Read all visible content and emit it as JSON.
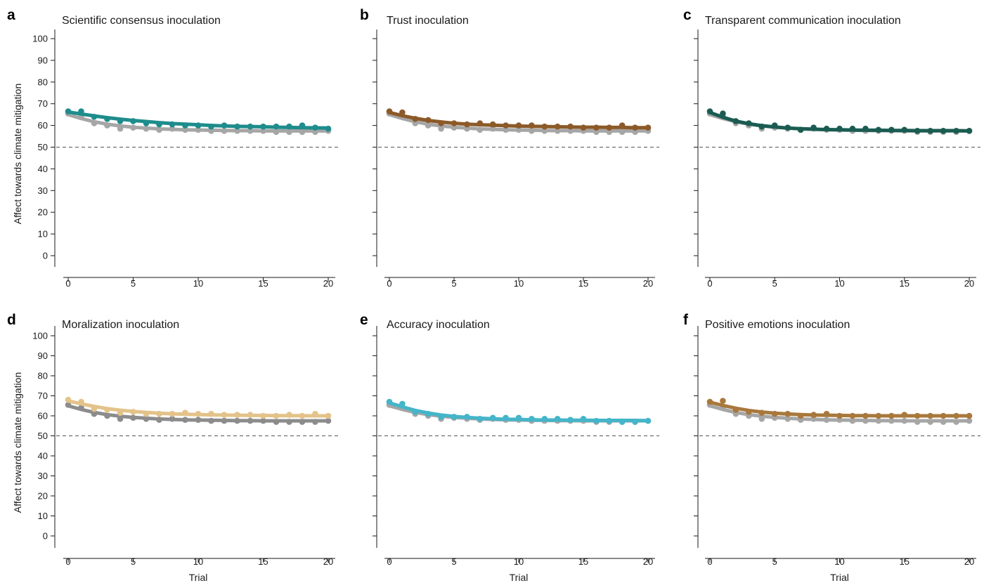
{
  "chart_data": [
    {
      "type": "line",
      "panel_letter": "a",
      "title": "Scientific consensus inoculation",
      "xlabel": "",
      "ylabel": "Affect towards climate mitigation",
      "xlim": [
        0,
        20
      ],
      "ylim": [
        0,
        100
      ],
      "xticks": [
        0,
        5,
        10,
        15,
        20
      ],
      "yticks": [
        0,
        10,
        20,
        30,
        40,
        50,
        60,
        70,
        80,
        90,
        100
      ],
      "reference_line": 50,
      "series": [
        {
          "role": "control",
          "color": "#a6a6a6",
          "points_x": [
            0,
            1,
            2,
            3,
            4,
            5,
            6,
            7,
            8,
            9,
            10,
            11,
            12,
            13,
            14,
            15,
            16,
            17,
            18,
            19,
            20
          ],
          "points_y": [
            65.5,
            64,
            61,
            60,
            58.5,
            59,
            58.5,
            58,
            58.5,
            58,
            58,
            57.5,
            57.5,
            57.5,
            57.5,
            57.5,
            57,
            57,
            57,
            57,
            57.5
          ],
          "fit_y": [
            65,
            63.2,
            61.7,
            60.6,
            59.8,
            59.2,
            58.8,
            58.4,
            58.2,
            58,
            57.9,
            57.8,
            57.7,
            57.6,
            57.6,
            57.5,
            57.5,
            57.5,
            57.5,
            57.5,
            57.5
          ]
        },
        {
          "role": "treatment",
          "color": "#1e8c8c",
          "points_x": [
            0,
            1,
            2,
            3,
            4,
            5,
            6,
            7,
            8,
            9,
            10,
            11,
            12,
            13,
            14,
            15,
            16,
            17,
            18,
            19,
            20
          ],
          "points_y": [
            66.5,
            66.5,
            64,
            63,
            62,
            62,
            61,
            60.5,
            60.5,
            60,
            60,
            59.5,
            60,
            59.5,
            59.5,
            59.5,
            59.5,
            59.5,
            60,
            59,
            58.5
          ],
          "fit_y": [
            66.2,
            65.3,
            64.4,
            63.6,
            62.9,
            62.3,
            61.8,
            61.3,
            60.9,
            60.6,
            60.3,
            60,
            59.8,
            59.6,
            59.5,
            59.4,
            59.2,
            59.1,
            59,
            58.9,
            58.8
          ]
        }
      ]
    },
    {
      "type": "line",
      "panel_letter": "b",
      "title": "Trust inoculation",
      "xlabel": "",
      "ylabel": "",
      "xlim": [
        0,
        20
      ],
      "ylim": [
        0,
        100
      ],
      "xticks": [
        0,
        5,
        10,
        15,
        20
      ],
      "yticks": [
        0,
        10,
        20,
        30,
        40,
        50,
        60,
        70,
        80,
        90,
        100
      ],
      "reference_line": 50,
      "series": [
        {
          "role": "control",
          "color": "#a6a6a6",
          "points_x": [
            0,
            1,
            2,
            3,
            4,
            5,
            6,
            7,
            8,
            9,
            10,
            11,
            12,
            13,
            14,
            15,
            16,
            17,
            18,
            19,
            20
          ],
          "points_y": [
            65.5,
            64,
            61,
            60,
            58.5,
            59,
            58.5,
            58,
            58.5,
            58,
            58,
            57.5,
            57.5,
            57.5,
            57.5,
            57.5,
            57,
            57,
            57,
            57,
            57.5
          ],
          "fit_y": [
            65,
            63.2,
            61.7,
            60.6,
            59.8,
            59.2,
            58.8,
            58.4,
            58.2,
            58,
            57.9,
            57.8,
            57.7,
            57.6,
            57.6,
            57.5,
            57.5,
            57.5,
            57.5,
            57.5,
            57.5
          ]
        },
        {
          "role": "treatment",
          "color": "#8c5a28",
          "points_x": [
            0,
            1,
            2,
            3,
            4,
            5,
            6,
            7,
            8,
            9,
            10,
            11,
            12,
            13,
            14,
            15,
            16,
            17,
            18,
            19,
            20
          ],
          "points_y": [
            66.5,
            66,
            63,
            62.5,
            61,
            61,
            60.5,
            61,
            60.5,
            60,
            60,
            60,
            59.5,
            59.5,
            59.5,
            59,
            59,
            59,
            60,
            59,
            59
          ],
          "fit_y": [
            66,
            64.5,
            63.3,
            62.3,
            61.6,
            61,
            60.6,
            60.3,
            60.1,
            59.9,
            59.7,
            59.6,
            59.5,
            59.4,
            59.3,
            59.2,
            59.2,
            59.1,
            59.1,
            59,
            59
          ]
        }
      ]
    },
    {
      "type": "line",
      "panel_letter": "c",
      "title": "Transparent communication inoculation",
      "xlabel": "",
      "ylabel": "",
      "xlim": [
        0,
        20
      ],
      "ylim": [
        0,
        100
      ],
      "xticks": [
        0,
        5,
        10,
        15,
        20
      ],
      "yticks": [
        0,
        10,
        20,
        30,
        40,
        50,
        60,
        70,
        80,
        90,
        100
      ],
      "reference_line": 50,
      "series": [
        {
          "role": "control",
          "color": "#a6a6a6",
          "points_x": [
            0,
            1,
            2,
            3,
            4,
            5,
            6,
            7,
            8,
            9,
            10,
            11,
            12,
            13,
            14,
            15,
            16,
            17,
            18,
            19,
            20
          ],
          "points_y": [
            65.5,
            64,
            61,
            60,
            58.5,
            59,
            58.5,
            58,
            58.5,
            58,
            58,
            57.5,
            57.5,
            57.5,
            57.5,
            57.5,
            57,
            57,
            57,
            57,
            57.5
          ],
          "fit_y": [
            65,
            63.2,
            61.7,
            60.6,
            59.8,
            59.2,
            58.8,
            58.4,
            58.2,
            58,
            57.9,
            57.8,
            57.7,
            57.6,
            57.6,
            57.5,
            57.5,
            57.5,
            57.5,
            57.5,
            57.5
          ]
        },
        {
          "role": "treatment",
          "color": "#1a5c52",
          "points_x": [
            0,
            1,
            2,
            3,
            4,
            5,
            6,
            7,
            8,
            9,
            10,
            11,
            12,
            13,
            14,
            15,
            16,
            17,
            18,
            19,
            20
          ],
          "points_y": [
            66.5,
            65.5,
            62,
            61,
            59.5,
            60,
            59,
            58,
            59,
            58.5,
            58.5,
            58.5,
            58.5,
            58,
            58,
            58,
            57.5,
            57.5,
            57.5,
            57.5,
            57.5
          ],
          "fit_y": [
            66,
            63.8,
            62,
            60.8,
            59.9,
            59.3,
            58.8,
            58.5,
            58.3,
            58.1,
            58,
            57.9,
            57.8,
            57.8,
            57.7,
            57.7,
            57.6,
            57.6,
            57.6,
            57.6,
            57.5
          ]
        }
      ]
    },
    {
      "type": "line",
      "panel_letter": "d",
      "title": "Moralization inoculation",
      "xlabel": "Trial",
      "ylabel": "Affect towards climate mitigation",
      "xlim": [
        0,
        20
      ],
      "ylim": [
        0,
        100
      ],
      "xticks": [
        0,
        5,
        10,
        15,
        20
      ],
      "yticks": [
        0,
        10,
        20,
        30,
        40,
        50,
        60,
        70,
        80,
        90,
        100
      ],
      "reference_line": 50,
      "series": [
        {
          "role": "control",
          "color": "#8c8c8c",
          "points_x": [
            0,
            1,
            2,
            3,
            4,
            5,
            6,
            7,
            8,
            9,
            10,
            11,
            12,
            13,
            14,
            15,
            16,
            17,
            18,
            19,
            20
          ],
          "points_y": [
            65.5,
            64,
            61,
            60,
            58.5,
            59,
            58.5,
            58,
            58.5,
            58,
            58,
            57.5,
            57.5,
            57.5,
            57.5,
            57.5,
            57,
            57,
            57,
            57,
            57.5
          ],
          "fit_y": [
            65,
            63.2,
            61.7,
            60.6,
            59.8,
            59.2,
            58.8,
            58.4,
            58.2,
            58,
            57.9,
            57.8,
            57.7,
            57.6,
            57.6,
            57.5,
            57.5,
            57.5,
            57.5,
            57.5,
            57.5
          ]
        },
        {
          "role": "treatment",
          "color": "#e3c38a",
          "points_x": [
            0,
            1,
            2,
            3,
            4,
            5,
            6,
            7,
            8,
            9,
            10,
            11,
            12,
            13,
            14,
            15,
            16,
            17,
            18,
            19,
            20
          ],
          "points_y": [
            68,
            67,
            63.5,
            63,
            61.5,
            62,
            61,
            61,
            61,
            61.5,
            61,
            61,
            60.5,
            60.5,
            60.5,
            60,
            60,
            60.5,
            60,
            61,
            60
          ],
          "fit_y": [
            67.5,
            66,
            64.7,
            63.6,
            62.8,
            62.2,
            61.7,
            61.3,
            61,
            60.8,
            60.6,
            60.5,
            60.4,
            60.3,
            60.2,
            60.2,
            60.1,
            60.1,
            60.1,
            60,
            60
          ]
        }
      ]
    },
    {
      "type": "line",
      "panel_letter": "e",
      "title": "Accuracy inoculation",
      "xlabel": "Trial",
      "ylabel": "",
      "xlim": [
        0,
        20
      ],
      "ylim": [
        0,
        100
      ],
      "xticks": [
        0,
        5,
        10,
        15,
        20
      ],
      "yticks": [
        0,
        10,
        20,
        30,
        40,
        50,
        60,
        70,
        80,
        90,
        100
      ],
      "reference_line": 50,
      "series": [
        {
          "role": "control",
          "color": "#a6a6a6",
          "points_x": [
            0,
            1,
            2,
            3,
            4,
            5,
            6,
            7,
            8,
            9,
            10,
            11,
            12,
            13,
            14,
            15,
            16,
            17,
            18,
            19,
            20
          ],
          "points_y": [
            65.5,
            64,
            61,
            60,
            58.5,
            59,
            58.5,
            58,
            58.5,
            58,
            58,
            57.5,
            57.5,
            57.5,
            57.5,
            57.5,
            57,
            57,
            57,
            57,
            57.5
          ],
          "fit_y": [
            65,
            63.2,
            61.7,
            60.6,
            59.8,
            59.2,
            58.8,
            58.4,
            58.2,
            58,
            57.9,
            57.8,
            57.7,
            57.6,
            57.6,
            57.5,
            57.5,
            57.5,
            57.5,
            57.5,
            57.5
          ]
        },
        {
          "role": "treatment",
          "color": "#45b5c9",
          "points_x": [
            0,
            1,
            2,
            3,
            4,
            5,
            6,
            7,
            8,
            9,
            10,
            11,
            12,
            13,
            14,
            15,
            16,
            17,
            18,
            19,
            20
          ],
          "points_y": [
            67,
            66,
            62,
            61,
            59.5,
            59.5,
            59.5,
            58.5,
            59,
            59,
            59,
            58.5,
            58.5,
            58.5,
            58,
            58.5,
            57.5,
            57.5,
            57,
            57,
            57.5
          ],
          "fit_y": [
            66.5,
            64.5,
            62.7,
            61.4,
            60.4,
            59.7,
            59.2,
            58.8,
            58.5,
            58.3,
            58.2,
            58,
            57.9,
            57.9,
            57.8,
            57.8,
            57.7,
            57.7,
            57.7,
            57.7,
            57.6
          ]
        }
      ]
    },
    {
      "type": "line",
      "panel_letter": "f",
      "title": "Positive emotions inoculation",
      "xlabel": "Trial",
      "ylabel": "",
      "xlim": [
        0,
        20
      ],
      "ylim": [
        0,
        100
      ],
      "xticks": [
        0,
        5,
        10,
        15,
        20
      ],
      "yticks": [
        0,
        10,
        20,
        30,
        40,
        50,
        60,
        70,
        80,
        90,
        100
      ],
      "reference_line": 50,
      "series": [
        {
          "role": "control",
          "color": "#a6a6a6",
          "points_x": [
            0,
            1,
            2,
            3,
            4,
            5,
            6,
            7,
            8,
            9,
            10,
            11,
            12,
            13,
            14,
            15,
            16,
            17,
            18,
            19,
            20
          ],
          "points_y": [
            65.5,
            64,
            61,
            60,
            58.5,
            59,
            58.5,
            58,
            58.5,
            58,
            58,
            57.5,
            57.5,
            57.5,
            57.5,
            57.5,
            57,
            57,
            57,
            57,
            57.5
          ],
          "fit_y": [
            65,
            63.2,
            61.7,
            60.6,
            59.8,
            59.2,
            58.8,
            58.4,
            58.2,
            58,
            57.9,
            57.8,
            57.7,
            57.6,
            57.6,
            57.5,
            57.5,
            57.5,
            57.5,
            57.5,
            57.5
          ]
        },
        {
          "role": "treatment",
          "color": "#a8783c",
          "points_x": [
            0,
            1,
            2,
            3,
            4,
            5,
            6,
            7,
            8,
            9,
            10,
            11,
            12,
            13,
            14,
            15,
            16,
            17,
            18,
            19,
            20
          ],
          "points_y": [
            67,
            67.5,
            63,
            62,
            61.5,
            61,
            61,
            60,
            60.5,
            61,
            60,
            60,
            60,
            60,
            60,
            60.5,
            60,
            60,
            60,
            60,
            60
          ],
          "fit_y": [
            66.8,
            65.2,
            63.8,
            62.7,
            61.9,
            61.3,
            60.9,
            60.6,
            60.4,
            60.3,
            60.2,
            60.1,
            60.1,
            60,
            60,
            60,
            60,
            60,
            60,
            60,
            60
          ]
        }
      ]
    }
  ]
}
